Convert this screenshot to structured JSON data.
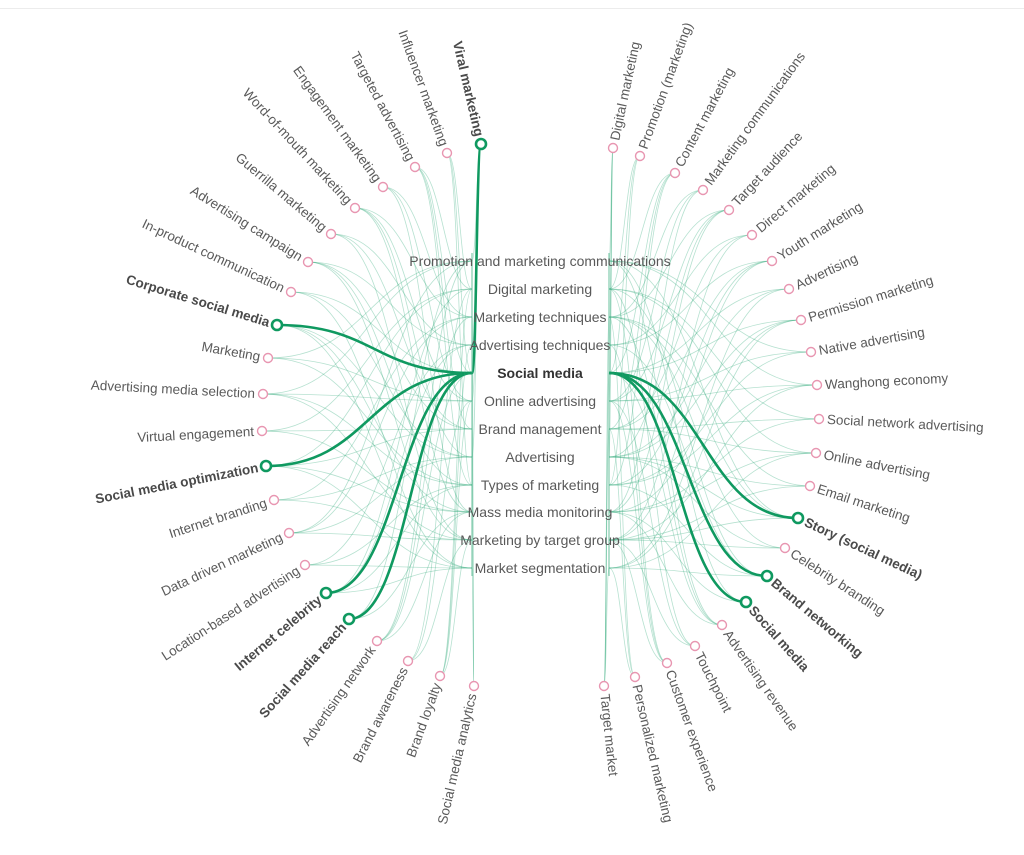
{
  "center_nodes": [
    {
      "label": "Promotion and marketing communications"
    },
    {
      "label": "Digital marketing"
    },
    {
      "label": "Marketing techniques"
    },
    {
      "label": "Advertising techniques"
    },
    {
      "label": "Social media",
      "selected": true
    },
    {
      "label": "Online advertising"
    },
    {
      "label": "Brand management"
    },
    {
      "label": "Advertising"
    },
    {
      "label": "Types of marketing"
    },
    {
      "label": "Mass media monitoring"
    },
    {
      "label": "Marketing by target group"
    },
    {
      "label": "Market segmentation"
    }
  ],
  "left_nodes": [
    {
      "label": "Viral marketing",
      "highlighted": true
    },
    {
      "label": "Influencer marketing"
    },
    {
      "label": "Targeted advertising"
    },
    {
      "label": "Engagement marketing"
    },
    {
      "label": "Word-of-mouth marketing"
    },
    {
      "label": "Guerrilla marketing"
    },
    {
      "label": "Advertising campaign"
    },
    {
      "label": "In-product communication"
    },
    {
      "label": "Corporate social media",
      "highlighted": true
    },
    {
      "label": "Marketing"
    },
    {
      "label": "Advertising media selection"
    },
    {
      "label": "Virtual engagement"
    },
    {
      "label": "Social media optimization",
      "highlighted": true
    },
    {
      "label": "Internet branding"
    },
    {
      "label": "Data driven marketing"
    },
    {
      "label": "Location-based advertising"
    },
    {
      "label": "Internet celebrity",
      "highlighted": true
    },
    {
      "label": "Social media reach",
      "highlighted": true
    },
    {
      "label": "Advertising network"
    },
    {
      "label": "Brand awareness"
    },
    {
      "label": "Brand loyalty"
    },
    {
      "label": "Social media analytics"
    }
  ],
  "right_nodes": [
    {
      "label": "Digital marketing"
    },
    {
      "label": "Promotion (marketing)"
    },
    {
      "label": "Content marketing"
    },
    {
      "label": "Marketing communications"
    },
    {
      "label": "Target audience"
    },
    {
      "label": "Direct marketing"
    },
    {
      "label": "Youth marketing"
    },
    {
      "label": "Advertising"
    },
    {
      "label": "Permission marketing"
    },
    {
      "label": "Native advertising"
    },
    {
      "label": "Wanghong economy"
    },
    {
      "label": "Social network advertising"
    },
    {
      "label": "Online advertising"
    },
    {
      "label": "Email marketing"
    },
    {
      "label": "Story (social media)",
      "highlighted": true
    },
    {
      "label": "Celebrity branding"
    },
    {
      "label": "Brand networking",
      "highlighted": true
    },
    {
      "label": "Social media",
      "highlighted": true
    },
    {
      "label": "Advertising revenue"
    },
    {
      "label": "Touchpoint"
    },
    {
      "label": "Customer experience"
    },
    {
      "label": "Personalized marketing"
    },
    {
      "label": "Target market"
    }
  ],
  "colors": {
    "link": "#2ea878",
    "highlight": "#0f9960",
    "node_ring": "#e896b1"
  }
}
